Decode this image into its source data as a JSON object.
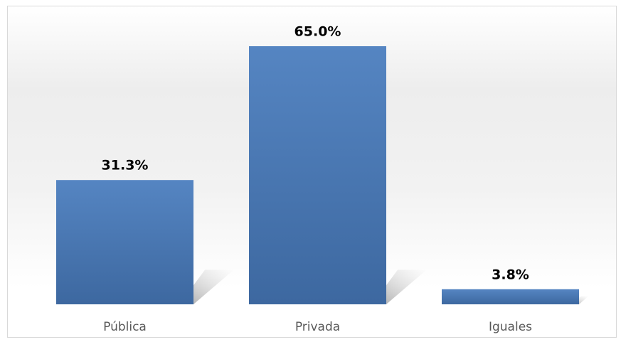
{
  "chart_data": {
    "type": "bar",
    "categories": [
      "Pública",
      "Privada",
      "Iguales"
    ],
    "values": [
      31.3,
      65.0,
      3.8
    ],
    "value_labels": [
      "31.3%",
      "65.0%",
      "3.8%"
    ],
    "color": "#4f81bd"
  }
}
